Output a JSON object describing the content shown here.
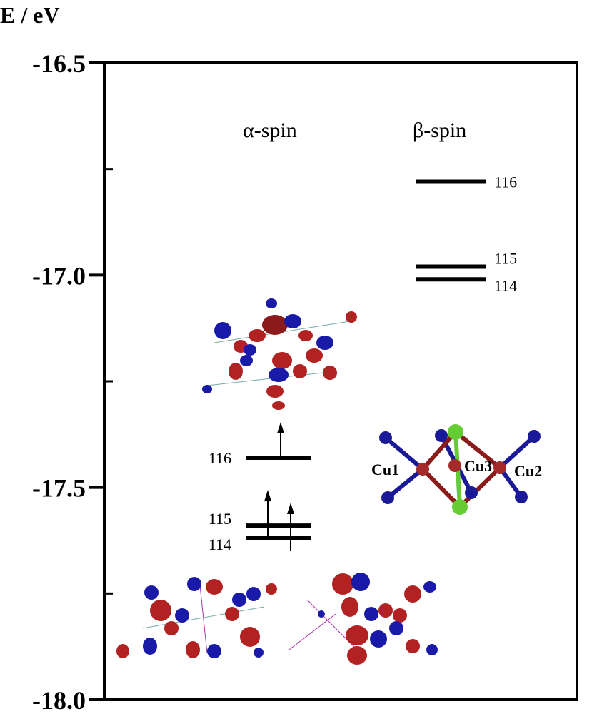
{
  "chart_data": {
    "type": "energy-level diagram",
    "ylabel": "E / eV",
    "ylim": [
      -18.0,
      -16.5
    ],
    "y_ticks": [
      "-16.5",
      "-17.0",
      "-17.5",
      "-18.0"
    ],
    "y_tick_values": [
      -16.5,
      -17.0,
      -17.5,
      -18.0
    ],
    "minor_ticks": [
      -16.75,
      -17.25,
      -17.75
    ],
    "columns": [
      {
        "name": "α-spin",
        "levels": [
          {
            "label": "116",
            "energy": -17.43,
            "electrons": 1
          },
          {
            "label": "115",
            "energy": -17.59,
            "electrons": 1
          },
          {
            "label": "114",
            "energy": -17.62,
            "electrons": 1
          }
        ]
      },
      {
        "name": "β-spin",
        "levels": [
          {
            "label": "116",
            "energy": -16.78,
            "electrons": 0
          },
          {
            "label": "115",
            "energy": -16.98,
            "electrons": 0
          },
          {
            "label": "114",
            "energy": -17.01,
            "electrons": 0
          }
        ]
      }
    ]
  },
  "structure_labels": [
    "Cu1",
    "Cu3",
    "Cu2"
  ],
  "colors": {
    "orbital_pos": "#b22222",
    "orbital_neg": "#1a1aa8",
    "cu": "#a52a2a",
    "cl": "#66cc33",
    "n": "#1a1a99"
  }
}
